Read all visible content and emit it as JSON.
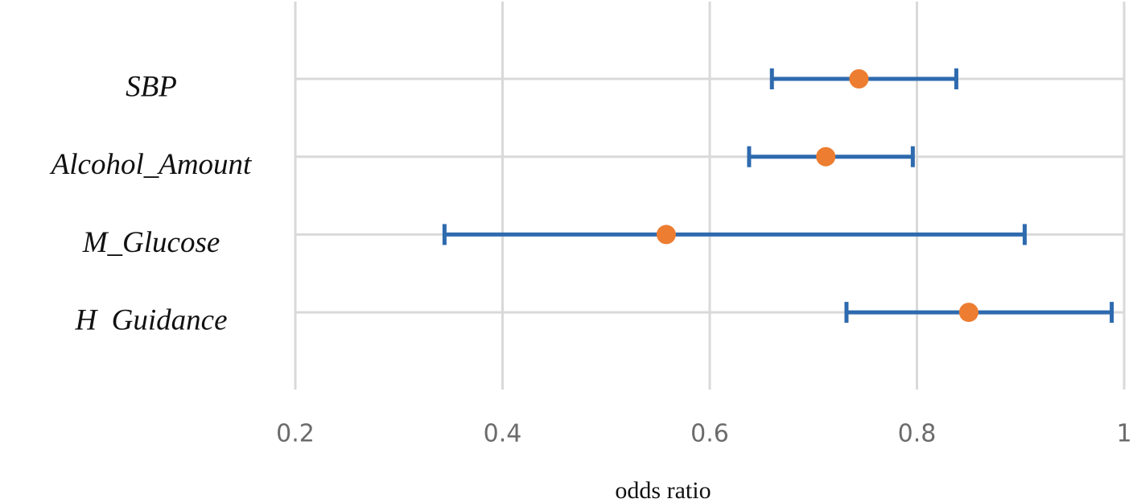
{
  "chart_data": {
    "type": "forest",
    "categories": [
      "SBP",
      "Alcohol_Amount",
      "M_Glucose",
      "H  Guidance"
    ],
    "values": [
      0.744,
      0.712,
      0.558,
      0.85
    ],
    "lower": [
      0.66,
      0.638,
      0.344,
      0.732
    ],
    "upper": [
      0.838,
      0.796,
      0.904,
      0.988
    ],
    "point_color": "#ED7D31",
    "interval_color": "#2E6AAE",
    "xlim": [
      0.2,
      1
    ],
    "xticks": [
      0.2,
      0.4,
      0.6,
      0.8,
      1
    ],
    "xlabel": "odds ratio",
    "grid": true
  }
}
